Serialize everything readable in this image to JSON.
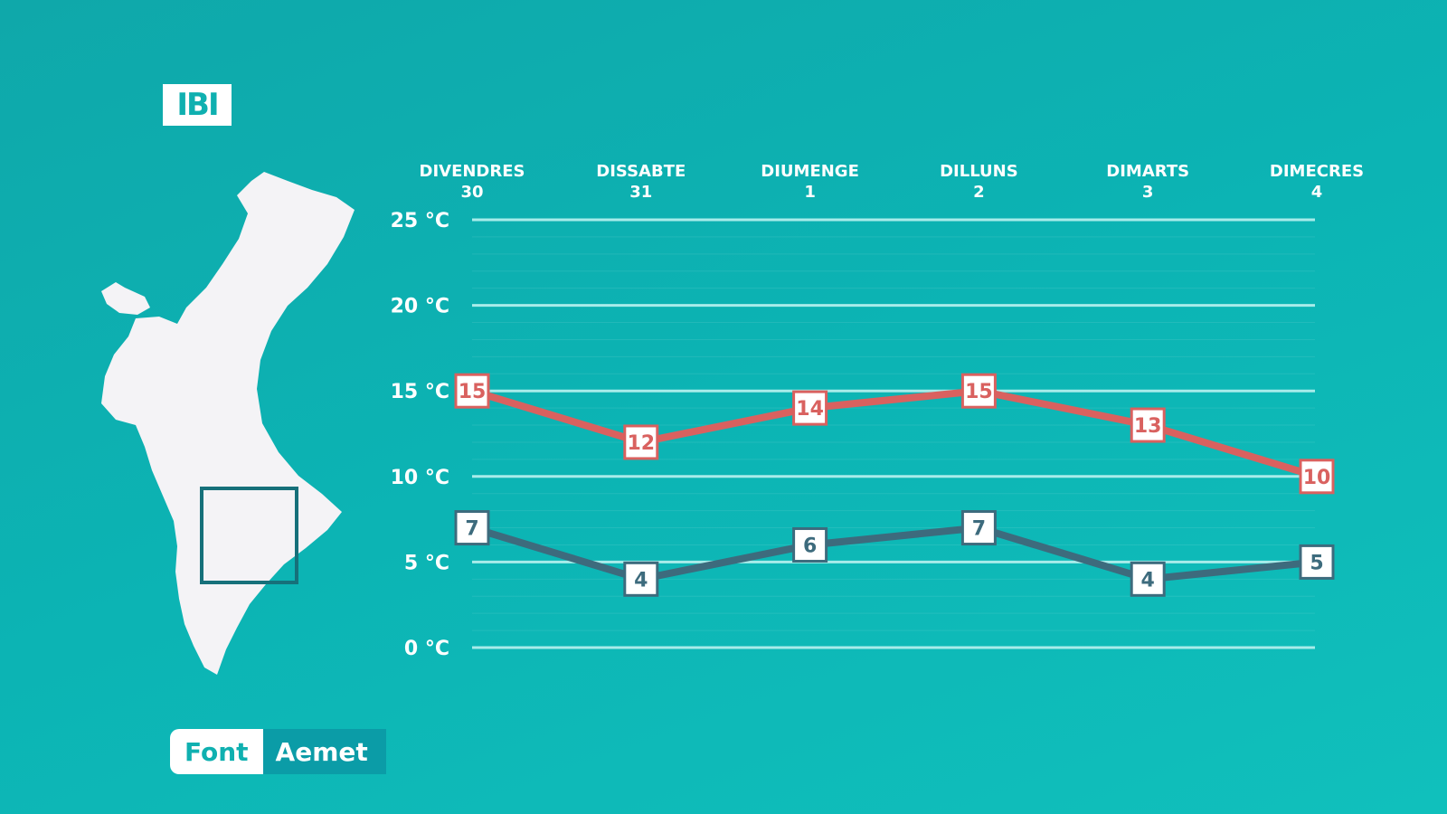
{
  "location": "IBI",
  "source": {
    "label": "Font",
    "value": "Aemet"
  },
  "colors": {
    "max": "#d9615f",
    "min": "#3d6b7d",
    "background": "#0fb0b0",
    "grid": "#a8ecea"
  },
  "chart_data": {
    "type": "line",
    "categories": [
      {
        "day": "DIVENDRES",
        "date": "30"
      },
      {
        "day": "DISSABTE",
        "date": "31"
      },
      {
        "day": "DIUMENGE",
        "date": "1"
      },
      {
        "day": "DILLUNS",
        "date": "2"
      },
      {
        "day": "DIMARTS",
        "date": "3"
      },
      {
        "day": "DIMECRES",
        "date": "4"
      }
    ],
    "series": [
      {
        "key": "max",
        "values": [
          15,
          12,
          14,
          15,
          13,
          10
        ]
      },
      {
        "key": "min",
        "values": [
          7,
          4,
          6,
          7,
          4,
          5
        ]
      }
    ],
    "yticks": [
      {
        "value": 25,
        "label": "25 °C"
      },
      {
        "value": 20,
        "label": "20 °C"
      },
      {
        "value": 15,
        "label": "15 °C"
      },
      {
        "value": 10,
        "label": "10 °C"
      },
      {
        "value": 5,
        "label": "5 °C"
      },
      {
        "value": 0,
        "label": "0 °C"
      }
    ],
    "ylim": [
      0,
      25
    ],
    "grid": true
  }
}
